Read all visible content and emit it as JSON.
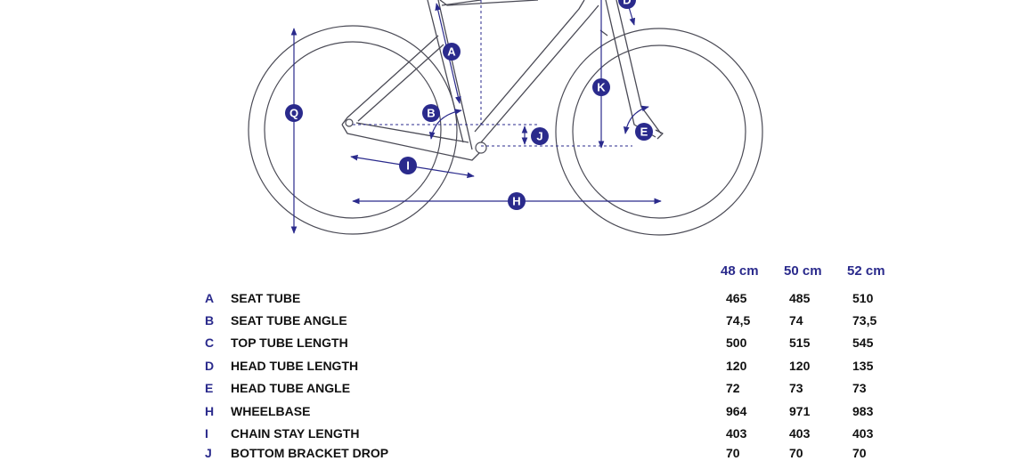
{
  "colors": {
    "accent": "#2a2a8c",
    "frame": "#4a4a55",
    "text": "#111111"
  },
  "markers": {
    "A": "A",
    "B": "B",
    "D": "D",
    "E": "E",
    "H": "H",
    "I": "I",
    "J": "J",
    "K": "K",
    "Q": "Q"
  },
  "table": {
    "sizes": [
      "48 cm",
      "50 cm",
      "52 cm"
    ],
    "rows": [
      {
        "code": "A",
        "name": "SEAT TUBE",
        "values": [
          "465",
          "485",
          "510"
        ]
      },
      {
        "code": "B",
        "name": "SEAT TUBE ANGLE",
        "values": [
          "74,5",
          "74",
          "73,5"
        ]
      },
      {
        "code": "C",
        "name": "TOP TUBE LENGTH",
        "values": [
          "500",
          "515",
          "545"
        ]
      },
      {
        "code": "D",
        "name": "HEAD TUBE LENGTH",
        "values": [
          "120",
          "120",
          "135"
        ]
      },
      {
        "code": "E",
        "name": "HEAD TUBE ANGLE",
        "values": [
          "72",
          "73",
          "73"
        ]
      },
      {
        "code": "H",
        "name": "WHEELBASE",
        "values": [
          "964",
          "971",
          "983"
        ]
      },
      {
        "code": "I",
        "name": "CHAIN STAY LENGTH",
        "values": [
          "403",
          "403",
          "403"
        ]
      },
      {
        "code": "J",
        "name": "BOTTOM BRACKET DROP",
        "values": [
          "70",
          "70",
          "70"
        ]
      }
    ]
  }
}
